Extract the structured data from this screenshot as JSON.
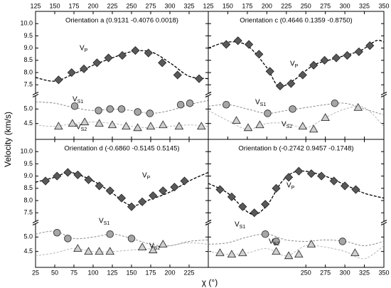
{
  "axis_labels": {
    "y": "Velocity (km/s)",
    "x": "χ (°)"
  },
  "y_axis": {
    "upper_lim": [
      7.1,
      10.5
    ],
    "upper_ticks": [
      7.5,
      {
        "value": 8,
        "label": "8.0"
      },
      8.5,
      {
        "value": 9,
        "label": "9.0"
      },
      9.5,
      {
        "value": 10,
        "label": "10.0"
      }
    ],
    "lower_lim": [
      3.95,
      5.5
    ],
    "lower_ticks": [
      4.5,
      {
        "value": 5,
        "label": "5.0"
      }
    ]
  },
  "chart_data": [
    {
      "type": "scatter",
      "title": "Orientation a (0.9131  -0.4076  0.0018)",
      "x_axis_position": "top",
      "xlim": [
        125,
        350
      ],
      "xticks": [
        125,
        150,
        175,
        200,
        225,
        250,
        275,
        300,
        325
      ],
      "series": [
        {
          "name": "VP",
          "marker": "diamond",
          "color": "#595959",
          "fit_color": "#000000",
          "axis": "upper",
          "x": [
            155,
            172,
            188,
            205,
            220,
            238,
            255,
            272,
            290,
            310,
            338
          ],
          "values": [
            7.7,
            8.0,
            8.15,
            8.4,
            8.6,
            8.7,
            8.9,
            8.8,
            8.4,
            7.9,
            7.75
          ],
          "fit_x": [
            125,
            150,
            175,
            200,
            225,
            250,
            275,
            300,
            325,
            350
          ],
          "fit_values": [
            7.8,
            7.65,
            7.95,
            8.3,
            8.6,
            8.85,
            8.85,
            8.4,
            7.85,
            7.75
          ]
        },
        {
          "name": "VS1",
          "marker": "circle",
          "color": "#a6a6a6",
          "fit_color": "#7f7f7f",
          "axis": "lower",
          "x": [
            176,
            207,
            222,
            237,
            258,
            274,
            314,
            326
          ],
          "values": [
            5.1,
            4.95,
            5.0,
            5.0,
            4.9,
            4.85,
            5.15,
            5.2
          ],
          "fit_x": [
            125,
            150,
            175,
            200,
            225,
            250,
            275,
            300,
            325,
            350
          ],
          "fit_values": [
            5.25,
            5.2,
            5.05,
            4.95,
            5.0,
            4.95,
            4.85,
            4.95,
            5.15,
            5.3
          ]
        },
        {
          "name": "VS2",
          "marker": "triangle",
          "color": "#d0d0d0",
          "fit_color": "#b0b0b0",
          "axis": "lower",
          "x": [
            155,
            173,
            189,
            208,
            225,
            243,
            258,
            275,
            291,
            312,
            341
          ],
          "values": [
            4.4,
            4.5,
            4.55,
            4.5,
            4.45,
            4.4,
            4.35,
            4.4,
            4.45,
            4.4,
            4.4
          ],
          "fit_x": [
            125,
            150,
            175,
            200,
            225,
            250,
            275,
            300,
            325,
            350
          ],
          "fit_values": [
            4.45,
            4.4,
            4.5,
            4.55,
            4.5,
            4.4,
            4.35,
            4.4,
            4.45,
            4.4
          ]
        }
      ]
    },
    {
      "type": "scatter",
      "title": "Orientation c (0.4646  0.1359  -0.8750)",
      "x_axis_position": "top",
      "xlim": [
        125,
        350
      ],
      "xticks": [
        125,
        150,
        175,
        200,
        225,
        250,
        275,
        300,
        325,
        350
      ],
      "series": [
        {
          "name": "VP",
          "marker": "diamond",
          "color": "#595959",
          "fit_color": "#000000",
          "axis": "upper",
          "x": [
            148,
            163,
            177,
            190,
            204,
            217,
            231,
            246,
            260,
            274,
            289,
            303,
            318,
            332
          ],
          "values": [
            9.15,
            9.3,
            9.15,
            8.75,
            8.05,
            7.45,
            7.55,
            7.9,
            8.3,
            8.5,
            8.6,
            8.7,
            8.85,
            9.1
          ],
          "fit_x": [
            125,
            150,
            175,
            200,
            215,
            235,
            260,
            290,
            320,
            340,
            350
          ],
          "fit_values": [
            9.0,
            9.25,
            9.1,
            8.2,
            7.45,
            7.7,
            8.3,
            8.6,
            8.9,
            9.3,
            9.25
          ]
        },
        {
          "name": "VS1",
          "marker": "circle",
          "color": "#a6a6a6",
          "fit_color": "#7f7f7f",
          "axis": "lower",
          "x": [
            148,
            201,
            233,
            287
          ],
          "values": [
            5.15,
            4.85,
            5.0,
            5.2
          ],
          "fit_x": [
            125,
            150,
            175,
            200,
            225,
            250,
            275,
            300,
            325,
            350
          ],
          "fit_values": [
            5.1,
            5.15,
            5.0,
            4.85,
            4.95,
            5.05,
            5.15,
            5.2,
            5.0,
            4.8
          ]
        },
        {
          "name": "VS2",
          "marker": "triangle",
          "color": "#d0d0d0",
          "fit_color": "#b0b0b0",
          "axis": "lower",
          "x": [
            161,
            176,
            191,
            246,
            260,
            275,
            317
          ],
          "values": [
            4.6,
            4.35,
            4.45,
            4.4,
            4.3,
            4.7,
            5.05
          ],
          "fit_x": [
            125,
            150,
            175,
            200,
            225,
            250,
            275,
            300,
            325,
            350
          ],
          "fit_values": [
            4.95,
            4.6,
            4.3,
            4.5,
            4.5,
            4.35,
            4.7,
            5.0,
            5.05,
            4.4
          ]
        }
      ]
    },
    {
      "type": "scatter",
      "title": "Orientation d (-0.6860  -0.5145  0.5145)",
      "x_axis_position": "bottom",
      "xlim": [
        25,
        250
      ],
      "xticks": [
        25,
        50,
        75,
        100,
        125,
        150,
        175,
        200,
        225
      ],
      "series": [
        {
          "name": "VP",
          "marker": "diamond",
          "color": "#595959",
          "fit_color": "#000000",
          "axis": "upper",
          "x": [
            38,
            53,
            67,
            80,
            94,
            108,
            122,
            137,
            150,
            164,
            178,
            191,
            206,
            219
          ],
          "values": [
            8.8,
            9.0,
            9.15,
            9.05,
            8.85,
            8.6,
            8.4,
            8.1,
            7.75,
            7.95,
            8.2,
            8.4,
            8.55,
            8.8
          ],
          "fit_x": [
            25,
            50,
            70,
            100,
            125,
            150,
            175,
            200,
            225,
            250
          ],
          "fit_values": [
            8.75,
            8.95,
            9.15,
            8.8,
            8.3,
            7.8,
            8.05,
            8.35,
            8.8,
            9.15
          ]
        },
        {
          "name": "VS1",
          "marker": "circle",
          "color": "#a6a6a6",
          "fit_color": "#7f7f7f",
          "axis": "lower",
          "x": [
            53,
            67,
            122,
            150
          ],
          "values": [
            5.15,
            4.95,
            5.1,
            4.95
          ],
          "fit_x": [
            25,
            50,
            75,
            100,
            125,
            150,
            175,
            200,
            225,
            250
          ],
          "fit_values": [
            5.1,
            5.2,
            4.95,
            5.0,
            5.1,
            4.95,
            4.75,
            4.7,
            4.85,
            4.9
          ]
        },
        {
          "name": "VS2",
          "marker": "triangle",
          "color": "#d0d0d0",
          "fit_color": "#b0b0b0",
          "axis": "lower",
          "x": [
            80,
            94,
            108,
            122,
            164,
            178,
            191
          ],
          "values": [
            4.6,
            4.5,
            4.5,
            4.5,
            4.65,
            4.55,
            4.75
          ],
          "fit_x": [
            25,
            50,
            75,
            100,
            125,
            150,
            175,
            200,
            225,
            250
          ],
          "fit_values": [
            4.35,
            4.45,
            4.6,
            4.5,
            4.5,
            4.55,
            4.6,
            4.7,
            4.8,
            4.75
          ]
        }
      ]
    },
    {
      "type": "scatter",
      "title": "Orientation b (-0.2742  0.9457  -0.1748)",
      "x_axis_position": "bottom",
      "xlim": [
        125,
        350
      ],
      "xticks": [
        250,
        275,
        300,
        325,
        350
      ],
      "series": [
        {
          "name": "VP",
          "marker": "diamond",
          "color": "#595959",
          "fit_color": "#000000",
          "axis": "upper",
          "x": [
            140,
            155,
            169,
            184,
            198,
            212,
            228,
            241,
            257,
            270,
            286,
            300,
            314
          ],
          "values": [
            8.45,
            8.15,
            7.75,
            7.5,
            7.85,
            8.5,
            8.95,
            9.2,
            9.1,
            9.0,
            8.8,
            8.6,
            8.45
          ],
          "fit_x": [
            125,
            150,
            180,
            200,
            220,
            240,
            270,
            300,
            325,
            350
          ],
          "fit_values": [
            8.7,
            8.3,
            7.45,
            7.8,
            8.8,
            9.2,
            9.05,
            8.65,
            8.3,
            8.1
          ]
        },
        {
          "name": "VS1",
          "marker": "circle",
          "color": "#a6a6a6",
          "fit_color": "#7f7f7f",
          "axis": "lower",
          "x": [
            198,
            212,
            297
          ],
          "values": [
            5.1,
            4.85,
            4.85
          ],
          "fit_x": [
            125,
            150,
            175,
            200,
            225,
            250,
            275,
            300,
            325,
            350
          ],
          "fit_values": [
            4.75,
            4.8,
            5.0,
            5.1,
            4.9,
            4.85,
            4.9,
            4.85,
            4.7,
            4.85
          ]
        },
        {
          "name": "VS2",
          "marker": "triangle",
          "color": "#d0d0d0",
          "fit_color": "#b0b0b0",
          "axis": "lower",
          "x": [
            140,
            155,
            169,
            212,
            228,
            241,
            257,
            313
          ],
          "values": [
            4.45,
            4.4,
            4.45,
            4.5,
            4.35,
            4.4,
            4.75,
            4.45
          ],
          "fit_x": [
            125,
            150,
            175,
            200,
            225,
            250,
            275,
            300,
            325,
            350
          ],
          "fit_values": [
            4.5,
            4.4,
            4.45,
            4.6,
            4.35,
            4.7,
            4.65,
            4.5,
            4.25,
            4.7
          ]
        }
      ]
    }
  ]
}
